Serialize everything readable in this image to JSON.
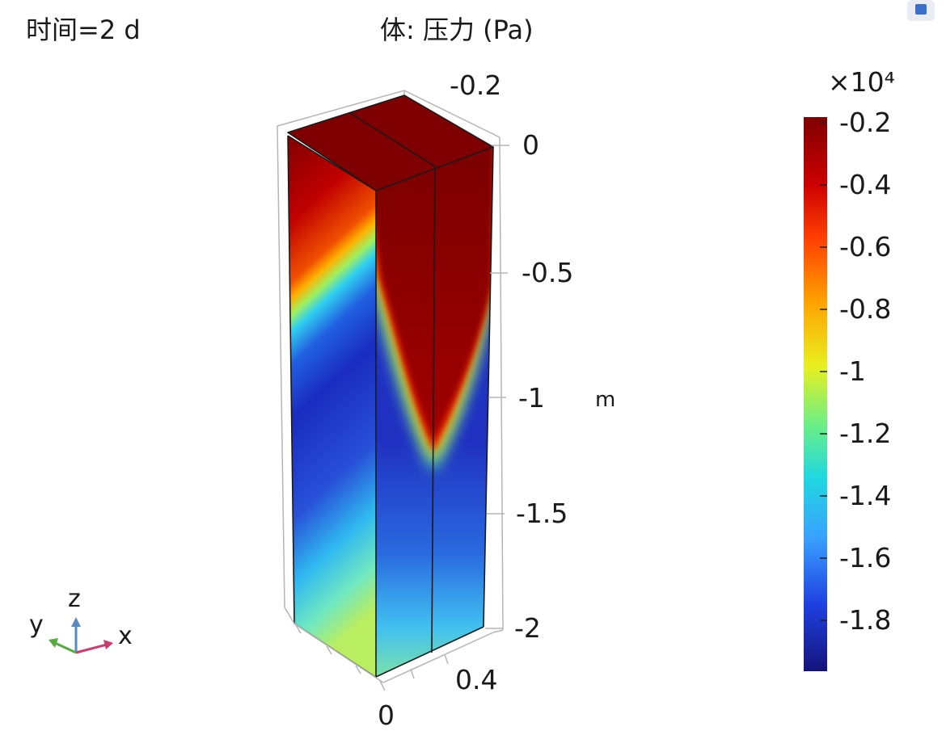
{
  "header": {
    "time_label": "时间=2 d",
    "plot_title": "体: 压力 (Pa)"
  },
  "axes": {
    "unit_m": "m"
  },
  "triad": {
    "z": "z",
    "y": "y",
    "x": "x"
  },
  "chart_data": {
    "type": "heatmap",
    "title": "体: 压力 (Pa)",
    "time": "2 d",
    "z_axis": {
      "label": "m",
      "ticks": [
        "0",
        "-0.5",
        "-1",
        "-1.5",
        "-2"
      ],
      "range": [
        -2,
        0
      ]
    },
    "x_axis_ticks": [
      "0",
      "0.4"
    ],
    "y_axis_ticks": [
      "-0.2"
    ],
    "colorbar": {
      "multiplier": "×10⁴",
      "ticks": [
        "-0.2",
        "-0.4",
        "-0.6",
        "-0.8",
        "-1",
        "-1.2",
        "-1.4",
        "-1.6",
        "-1.8"
      ],
      "range": [
        -1.95,
        -0.2
      ],
      "colormap": "jet"
    },
    "field_description": {
      "top_surface_value": -0.2,
      "front_face_profile": [
        {
          "z": 0,
          "value": -0.2
        },
        {
          "z": -0.45,
          "value": -0.3
        },
        {
          "z": -0.6,
          "value": -1.0
        },
        {
          "z": -0.75,
          "value": -1.75
        },
        {
          "z": -1.5,
          "value": -1.8
        },
        {
          "z": -1.8,
          "value": -1.4
        },
        {
          "z": -2,
          "value": -1.1
        }
      ],
      "side_face_plume_tip_z": -1.35
    }
  }
}
